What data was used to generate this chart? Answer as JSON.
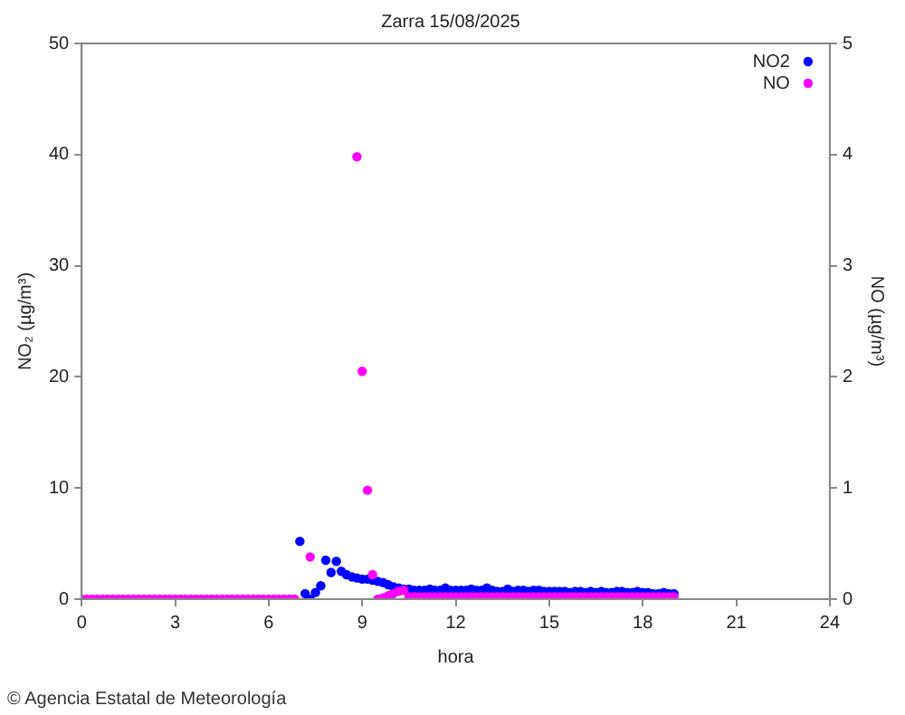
{
  "chart_data": {
    "type": "scatter",
    "title": "Zarra 15/08/2025",
    "xlabel": "hora",
    "ylabel": "NO₂ (µg/m³)",
    "y2label": "NO (µg/m³)",
    "annotations": [
      "© Agencia Estatal de Meteorología"
    ],
    "x": [
      0,
      0.17,
      0.33,
      0.5,
      0.67,
      0.83,
      1,
      1.17,
      1.33,
      1.5,
      1.67,
      1.83,
      2,
      2.17,
      2.33,
      2.5,
      2.67,
      2.83,
      3,
      3.17,
      3.33,
      3.5,
      3.67,
      3.83,
      4,
      4.17,
      4.33,
      4.5,
      4.67,
      4.83,
      5,
      5.17,
      5.33,
      5.5,
      5.67,
      5.83,
      6,
      6.17,
      6.33,
      6.5,
      6.67,
      6.83,
      7,
      7.17,
      7.33,
      7.5,
      7.67,
      7.83,
      8,
      8.17,
      8.33,
      8.5,
      8.67,
      8.83,
      9,
      9.17,
      9.33,
      9.5,
      9.67,
      9.83,
      10,
      10.17,
      10.33,
      10.5,
      10.67,
      10.83,
      11,
      11.17,
      11.33,
      11.5,
      11.67,
      11.83,
      12,
      12.17,
      12.33,
      12.5,
      12.67,
      12.83,
      13,
      13.17,
      13.33,
      13.5,
      13.67,
      13.83,
      14,
      14.17,
      14.33,
      14.5,
      14.67,
      14.83,
      15,
      15.17,
      15.33,
      15.5,
      15.67,
      15.83,
      16,
      16.17,
      16.33,
      16.5,
      16.67,
      16.83,
      17,
      17.17,
      17.33,
      17.5,
      17.67,
      17.83,
      18,
      18.17,
      18.33,
      18.5,
      18.67,
      18.83,
      19
    ],
    "series": [
      {
        "name": "NO2",
        "color": "#0000ff",
        "values": [
          null,
          null,
          null,
          null,
          null,
          null,
          null,
          null,
          null,
          null,
          null,
          null,
          null,
          null,
          null,
          null,
          null,
          null,
          null,
          null,
          null,
          null,
          null,
          null,
          null,
          null,
          null,
          null,
          null,
          null,
          null,
          null,
          null,
          null,
          null,
          null,
          null,
          null,
          null,
          null,
          null,
          null,
          5.2,
          0.5,
          0,
          0.6,
          1.2,
          3.5,
          2.4,
          3.4,
          2.5,
          2.2,
          2,
          1.9,
          1.8,
          1.8,
          1.7,
          1.6,
          1.5,
          1.3,
          1.1,
          1,
          0.9,
          0.9,
          0.8,
          0.8,
          0.8,
          0.9,
          0.8,
          0.8,
          1,
          0.8,
          0.8,
          0.8,
          0.8,
          0.9,
          0.8,
          0.8,
          1,
          0.8,
          0.7,
          0.7,
          0.9,
          0.7,
          0.8,
          0.8,
          0.7,
          0.8,
          0.8,
          0.7,
          0.7,
          0.7,
          0.7,
          0.7,
          0.6,
          0.7,
          0.7,
          0.6,
          0.7,
          0.6,
          0.7,
          0.6,
          0.6,
          0.7,
          0.7,
          0.6,
          0.6,
          0.7,
          0.6,
          0.6,
          0.5,
          0.5,
          0.6,
          0.5,
          0.5
        ]
      },
      {
        "name": "NO",
        "color": "#ff00ff",
        "axis": "y2",
        "values": [
          0,
          0,
          0,
          0,
          0,
          0,
          0,
          0,
          0,
          0,
          0,
          0,
          0,
          0,
          0,
          0,
          0,
          0,
          0,
          0,
          0,
          0,
          0,
          0,
          0,
          0,
          0,
          0,
          0,
          0,
          0,
          0,
          0,
          0,
          0,
          0,
          0,
          0,
          0,
          0,
          0,
          0,
          null,
          null,
          0.38,
          null,
          null,
          null,
          null,
          null,
          null,
          null,
          null,
          3.98,
          2.05,
          0.98,
          0.22,
          0,
          0.01,
          0.03,
          0.05,
          0.07,
          0.08,
          0.02,
          0.02,
          0.02,
          0.02,
          0.02,
          0.02,
          0.02,
          0.02,
          0.02,
          0.02,
          0.02,
          0.02,
          0.02,
          0.02,
          0.02,
          0.02,
          0.02,
          0.02,
          0.02,
          0.02,
          0.02,
          0.02,
          0.02,
          0.02,
          0.02,
          0.02,
          0.02,
          0.02,
          0.02,
          0.02,
          0.02,
          0.02,
          0.02,
          0.02,
          0.02,
          0.02,
          0.02,
          0.02,
          0.02,
          0.02,
          0.02,
          0.02,
          0.02,
          0.02,
          0.02,
          0.02,
          0.02,
          0.02,
          0.02,
          0.02,
          0.02,
          0.02
        ]
      }
    ],
    "xlim": [
      0,
      24
    ],
    "xticks": [
      0,
      3,
      6,
      9,
      12,
      15,
      18,
      21,
      24
    ],
    "ylim": [
      0,
      50
    ],
    "yticks": [
      0,
      10,
      20,
      30,
      40,
      50
    ],
    "y2lim": [
      0,
      5
    ],
    "y2ticks": [
      0,
      1,
      2,
      3,
      4,
      5
    ],
    "legend": "top right",
    "marker": "circle"
  }
}
